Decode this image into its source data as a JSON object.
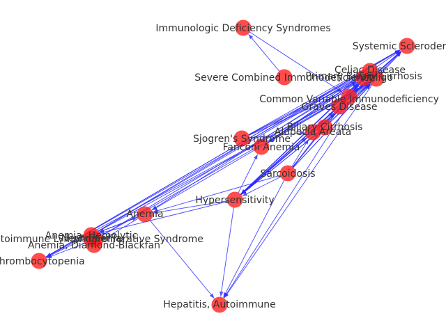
{
  "graph": {
    "nodes": [
      {
        "id": "ids",
        "label": "Immunologic Deficiency Syndromes"
      },
      {
        "id": "ss",
        "label": "Systemic Scleroderma"
      },
      {
        "id": "celiac",
        "label": "Celiac Disease"
      },
      {
        "id": "pbc",
        "label": "Primary Biliary Cirrhosis"
      },
      {
        "id": "vitiligo",
        "label": "Vitiligo"
      },
      {
        "id": "scid",
        "label": "Severe Combined Immunodeficiency"
      },
      {
        "id": "cvid",
        "label": "Common Variable Immunodeficiency"
      },
      {
        "id": "graves",
        "label": "Graves Disease"
      },
      {
        "id": "bc",
        "label": "Biliary Cirrhosis"
      },
      {
        "id": "aa",
        "label": "Alopecia Areata"
      },
      {
        "id": "sjogren",
        "label": "Sjogren's Syndrome"
      },
      {
        "id": "fanconi",
        "label": "Fanconi Anemia"
      },
      {
        "id": "sarcoid",
        "label": "Sarcoidosis"
      },
      {
        "id": "hyper",
        "label": "Hypersensitivity"
      },
      {
        "id": "anemia",
        "label": "Anemia"
      },
      {
        "id": "ahemo",
        "label": "Anemia, Hemolytic"
      },
      {
        "id": "neutropenia",
        "label": "Neutropenia"
      },
      {
        "id": "alps",
        "label": "Autoimmune Lymphoproliferative Syndrome"
      },
      {
        "id": "adb",
        "label": "Anemia, Diamond-Blackfan"
      },
      {
        "id": "thrombo",
        "label": "Thrombocytopenia"
      },
      {
        "id": "hepatitis",
        "label": "Hepatitis, Autoimmune"
      }
    ],
    "edges": [
      [
        "scid",
        "ids"
      ],
      [
        "ids",
        "cvid"
      ],
      [
        "hyper",
        "ss"
      ],
      [
        "hyper",
        "celiac"
      ],
      [
        "hyper",
        "pbc"
      ],
      [
        "hyper",
        "vitiligo"
      ],
      [
        "hyper",
        "graves"
      ],
      [
        "hyper",
        "aa"
      ],
      [
        "hyper",
        "bc"
      ],
      [
        "hyper",
        "anemia"
      ],
      [
        "hyper",
        "ahemo"
      ],
      [
        "hyper",
        "hepatitis"
      ],
      [
        "hyper",
        "fanconi"
      ],
      [
        "sarcoid",
        "ss"
      ],
      [
        "sarcoid",
        "celiac"
      ],
      [
        "sarcoid",
        "vitiligo"
      ],
      [
        "sarcoid",
        "pbc"
      ],
      [
        "sarcoid",
        "graves"
      ],
      [
        "sarcoid",
        "hyper"
      ],
      [
        "sarcoid",
        "hepatitis"
      ],
      [
        "sarcoid",
        "anemia"
      ],
      [
        "sarcoid",
        "aa"
      ],
      [
        "ahemo",
        "ss"
      ],
      [
        "ahemo",
        "celiac"
      ],
      [
        "ahemo",
        "vitiligo"
      ],
      [
        "ahemo",
        "anemia"
      ],
      [
        "ahemo",
        "adb"
      ],
      [
        "ahemo",
        "thrombo"
      ],
      [
        "alps",
        "pbc"
      ],
      [
        "alps",
        "vitiligo"
      ],
      [
        "alps",
        "neutropenia"
      ],
      [
        "alps",
        "adb"
      ],
      [
        "alps",
        "thrombo"
      ],
      [
        "thrombo",
        "ss"
      ],
      [
        "thrombo",
        "vitiligo"
      ],
      [
        "thrombo",
        "celiac"
      ],
      [
        "anemia",
        "hepatitis"
      ],
      [
        "anemia",
        "ahemo"
      ],
      [
        "anemia",
        "adb"
      ],
      [
        "sjogren",
        "ss"
      ],
      [
        "sjogren",
        "celiac"
      ],
      [
        "sjogren",
        "vitiligo"
      ],
      [
        "sjogren",
        "pbc"
      ],
      [
        "sjogren",
        "aa"
      ],
      [
        "fanconi",
        "ss"
      ],
      [
        "fanconi",
        "vitiligo"
      ],
      [
        "fanconi",
        "celiac"
      ],
      [
        "aa",
        "ss"
      ],
      [
        "aa",
        "vitiligo"
      ],
      [
        "aa",
        "celiac"
      ],
      [
        "aa",
        "hyper"
      ],
      [
        "bc",
        "ss"
      ],
      [
        "bc",
        "vitiligo"
      ],
      [
        "bc",
        "pbc"
      ],
      [
        "bc",
        "hyper"
      ],
      [
        "graves",
        "ss"
      ],
      [
        "graves",
        "celiac"
      ],
      [
        "graves",
        "vitiligo"
      ],
      [
        "graves",
        "pbc"
      ],
      [
        "cvid",
        "ss"
      ],
      [
        "cvid",
        "vitiligo"
      ],
      [
        "cvid",
        "celiac"
      ],
      [
        "cvid",
        "hyper"
      ],
      [
        "celiac",
        "vitiligo"
      ],
      [
        "pbc",
        "vitiligo"
      ],
      [
        "pbc",
        "celiac"
      ],
      [
        "vitiligo",
        "anemia"
      ],
      [
        "celiac",
        "anemia"
      ],
      [
        "pbc",
        "hyper"
      ],
      [
        "vitiligo",
        "hyper"
      ],
      [
        "celiac",
        "hepatitis"
      ],
      [
        "vitiligo",
        "hepatitis"
      ],
      [
        "ss",
        "thrombo"
      ],
      [
        "pbc",
        "fanconi"
      ]
    ]
  },
  "colors": {
    "node": "#ff2020",
    "edge": "#2a2aff",
    "label": "#333333"
  }
}
